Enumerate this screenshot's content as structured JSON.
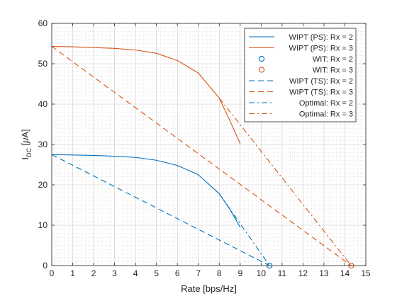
{
  "chart_data": {
    "type": "line",
    "xlabel": "Rate [bps/Hz]",
    "ylabel": {
      "main": "I",
      "sub": "DC",
      "unit_open": " [",
      "mu": "μ",
      "unit_close": "A]"
    },
    "xlim": [
      0,
      15
    ],
    "ylim": [
      0,
      60
    ],
    "xticks": [
      0,
      1,
      2,
      3,
      4,
      5,
      6,
      7,
      8,
      9,
      10,
      11,
      12,
      13,
      14,
      15
    ],
    "yticks": [
      0,
      10,
      20,
      30,
      40,
      50,
      60
    ],
    "grid": true,
    "minor_grid": true,
    "legend_position": "top-right",
    "series": [
      {
        "name": "WIPT (PS): Rx = 2",
        "color": "#0072BD",
        "style": "solid",
        "marker": "none",
        "x": [
          0,
          1,
          2,
          3,
          4,
          5,
          6,
          7,
          8,
          8.5,
          9
        ],
        "y": [
          27.5,
          27.4,
          27.3,
          27.1,
          26.8,
          26.1,
          24.8,
          22.5,
          17.8,
          14.0,
          9.5
        ]
      },
      {
        "name": "WIPT (PS): Rx = 3",
        "color": "#D95319",
        "style": "solid",
        "marker": "none",
        "x": [
          0,
          1,
          2,
          3,
          4,
          5,
          6,
          7,
          8,
          8.5,
          9
        ],
        "y": [
          54.3,
          54.2,
          54.0,
          53.8,
          53.4,
          52.6,
          50.8,
          47.7,
          41.5,
          36.0,
          30.2
        ]
      },
      {
        "name": "WIT: Rx = 2",
        "color": "#0072BD",
        "style": "none",
        "marker": "circle",
        "x": [
          10.4
        ],
        "y": [
          0
        ]
      },
      {
        "name": "WIT: Rx = 3",
        "color": "#D95319",
        "style": "none",
        "marker": "circle",
        "x": [
          14.3
        ],
        "y": [
          0
        ]
      },
      {
        "name": "WIPT (TS): Rx = 2",
        "color": "#0072BD",
        "style": "dashed",
        "marker": "none",
        "x": [
          0,
          10.4
        ],
        "y": [
          27.5,
          0
        ]
      },
      {
        "name": "WIPT (TS): Rx = 3",
        "color": "#D95319",
        "style": "dashed",
        "marker": "none",
        "x": [
          0,
          14.3
        ],
        "y": [
          54.3,
          0
        ]
      },
      {
        "name": "Optimal: Rx = 2",
        "color": "#0072BD",
        "style": "dashdot",
        "marker": "none",
        "x": [
          8,
          10.4
        ],
        "y": [
          17.8,
          0
        ]
      },
      {
        "name": "Optimal: Rx = 3",
        "color": "#D95319",
        "style": "dashdot",
        "marker": "none",
        "x": [
          8,
          14.3
        ],
        "y": [
          41.5,
          0
        ]
      }
    ]
  }
}
